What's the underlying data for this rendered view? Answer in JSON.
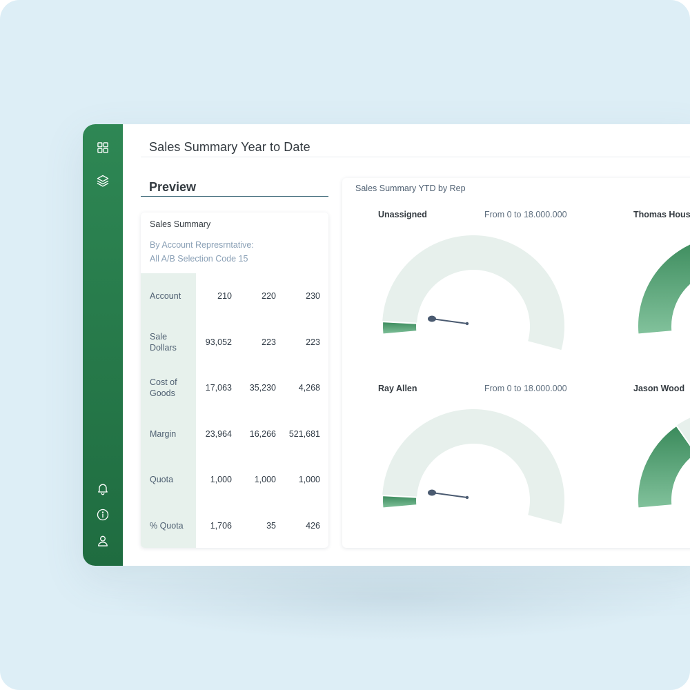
{
  "page": {
    "title": "Sales Summary Year to Date"
  },
  "sidebar": {
    "top_icons": [
      "grid-icon",
      "layers-icon"
    ],
    "bottom_icons": [
      "bell-icon",
      "info-icon",
      "user-icon"
    ]
  },
  "preview": {
    "label": "Preview",
    "summary": {
      "title": "Sales Summary",
      "subtitle_line1": "By Account Represrntative:",
      "subtitle_line2": "All A/B Selection Code 15",
      "rows": [
        {
          "label": "Account",
          "values": [
            "210",
            "220",
            "230"
          ]
        },
        {
          "label": "Sale Dollars",
          "values": [
            "93,052",
            "223",
            "223"
          ]
        },
        {
          "label": "Cost of Goods",
          "values": [
            "17,063",
            "35,230",
            "4,268"
          ]
        },
        {
          "label": "Margin",
          "values": [
            "23,964",
            "16,266",
            "521,681"
          ]
        },
        {
          "label": "Quota",
          "values": [
            "1,000",
            "1,000",
            "1,000"
          ]
        },
        {
          "label": "% Quota",
          "values": [
            "1,706",
            "35",
            "426"
          ]
        }
      ]
    }
  },
  "gauges": {
    "panel_title": "Sales Summary YTD by Rep",
    "colors": {
      "track": "#e7f0ec",
      "fill_dark": "#3a8a5b",
      "fill_light": "#82c29c",
      "needle": "#4a5a70"
    },
    "items": [
      {
        "name": "Unassigned",
        "range": "From 0 to 18.000.000",
        "fraction": 0.04
      },
      {
        "name": "Thomas Hous",
        "range": "",
        "fraction": 0.55
      },
      {
        "name": "Ray Allen",
        "range": "From 0 to 18.000.000",
        "fraction": 0.04
      },
      {
        "name": "Jason Wood",
        "range": "",
        "fraction": 0.3
      }
    ]
  }
}
